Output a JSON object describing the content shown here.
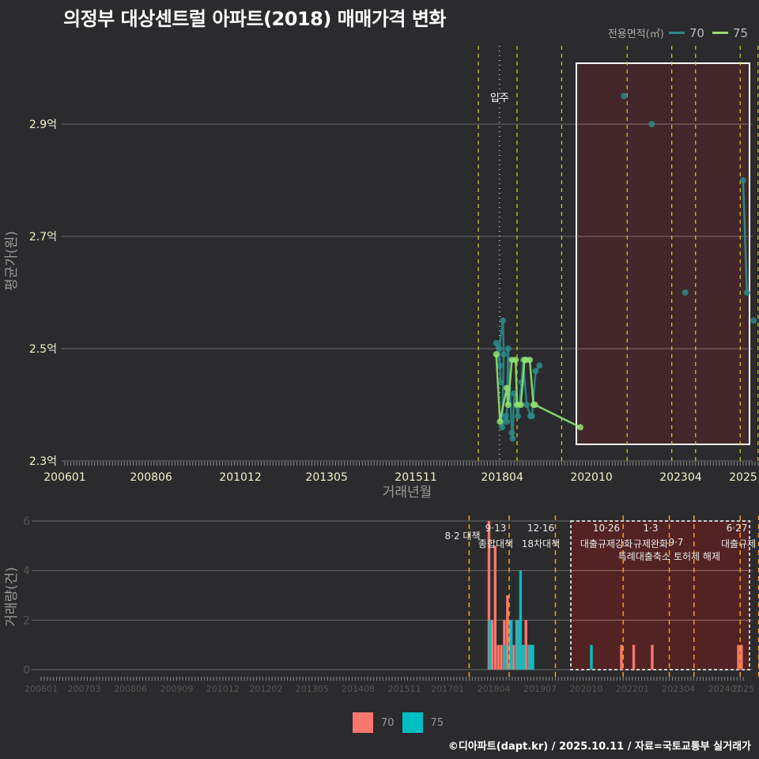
{
  "title": "의정부 대상센트럴 아파트(2018) 매매가격 변화",
  "legend_top": {
    "label": "전용면적(㎡)",
    "items": [
      {
        "name": "70",
        "color": "#2a8a8a"
      },
      {
        "name": "75",
        "color": "#90e070"
      }
    ]
  },
  "legend_bottom": {
    "items": [
      {
        "name": "70",
        "color": "#f8766d"
      },
      {
        "name": "75",
        "color": "#00bfc4"
      }
    ]
  },
  "footer": "©디아파트(dapt.kr) / 2025.10.11 / 자료=국토교통부 실거래가",
  "annotation_move_in": "입주",
  "chart_data": [
    {
      "type": "line",
      "title": "의정부 대상센트럴 아파트(2018) 매매가격 변화",
      "xlabel": "거래년월",
      "ylabel": "평균가(원)",
      "x_ticks": [
        "200601",
        "200806",
        "201012",
        "201305",
        "201511",
        "201804",
        "202010",
        "202304",
        "2025"
      ],
      "y_ticks": [
        "2.3억",
        "2.5억",
        "2.7억",
        "2.9억"
      ],
      "ylim": [
        2.3,
        3.0
      ],
      "grid": true,
      "series": [
        {
          "name": "70",
          "x": [
            "201802",
            "201803",
            "201803",
            "201803",
            "201804",
            "201804",
            "201804",
            "201805",
            "201805",
            "201806",
            "201807",
            "201807",
            "201808",
            "201809",
            "201810",
            "201811",
            "201812",
            "201901",
            "201902",
            "201903",
            "201904",
            "202109",
            "202206",
            "202305",
            "202501",
            "202502",
            "202504"
          ],
          "y": [
            2.51,
            2.47,
            2.44,
            2.5,
            2.55,
            2.49,
            2.36,
            2.38,
            2.37,
            2.5,
            2.35,
            2.34,
            2.42,
            2.38,
            2.44,
            2.48,
            2.4,
            2.38,
            2.38,
            2.46,
            2.47,
            2.95,
            2.9,
            2.6,
            2.8,
            2.6,
            2.55
          ]
        },
        {
          "name": "75",
          "x": [
            "201802",
            "201803",
            "201805",
            "201806",
            "201807",
            "201808",
            "201809",
            "201810",
            "201811",
            "201812",
            "201901",
            "201902",
            "201903",
            "202006"
          ],
          "y": [
            2.49,
            2.37,
            2.43,
            2.4,
            2.48,
            2.48,
            2.4,
            2.4,
            2.48,
            2.48,
            2.48,
            2.4,
            2.4,
            2.36
          ]
        }
      ],
      "vlines_policy": [
        "201708",
        "201809",
        "201912",
        "202110",
        "202301",
        "202309",
        "202412",
        "202506"
      ],
      "vline_move_in": "201801",
      "highlight_box": {
        "from": "202010",
        "to": "202508"
      }
    },
    {
      "type": "bar",
      "xlabel": "",
      "ylabel": "거래량(건)",
      "x_ticks": [
        "200601",
        "200703",
        "200806",
        "200909",
        "201012",
        "201202",
        "201305",
        "201408",
        "201511",
        "201701",
        "201804",
        "201907",
        "202010",
        "202201",
        "202304",
        "202407",
        "2025"
      ],
      "y_ticks": [
        "0",
        "2",
        "4",
        "6"
      ],
      "ylim": [
        0,
        6
      ],
      "series": [
        {
          "name": "70",
          "x": [
            "201802",
            "201803",
            "201804",
            "201805",
            "201806",
            "201807",
            "201808",
            "201809",
            "201810",
            "201811",
            "201812",
            "201901",
            "201902",
            "201903",
            "201904",
            "202109",
            "202201",
            "202207",
            "202411",
            "202412",
            "202506"
          ],
          "values": [
            6,
            2,
            5,
            1,
            1,
            2,
            3,
            2,
            1,
            2,
            2,
            1,
            2,
            1,
            1,
            1,
            1,
            1,
            1,
            1,
            1
          ]
        },
        {
          "name": "75",
          "x": [
            "201802",
            "201807",
            "201809",
            "201811",
            "201812",
            "201901",
            "201903",
            "201904",
            "202011"
          ],
          "values": [
            2,
            1,
            2,
            2,
            4,
            1,
            1,
            1,
            1
          ]
        }
      ],
      "policy_labels": [
        {
          "date": "8·2 대책",
          "x": "201708"
        },
        {
          "date": "9·13",
          "label": "종합대책",
          "x": "201809"
        },
        {
          "date": "12·16",
          "label": "18차대책",
          "x": "201912"
        },
        {
          "date": "10·26",
          "label": "대출규제강화",
          "x": "202110"
        },
        {
          "date": "1·3",
          "label": "규제완화",
          "x": "202301"
        },
        {
          "date": "9·7",
          "label": "특례대출축소",
          "x": "202309"
        },
        {
          "date": "",
          "label": "토허제 해제",
          "x": "202502"
        },
        {
          "date": "6·27",
          "label": "대출규제",
          "x": "202506"
        }
      ]
    }
  ]
}
